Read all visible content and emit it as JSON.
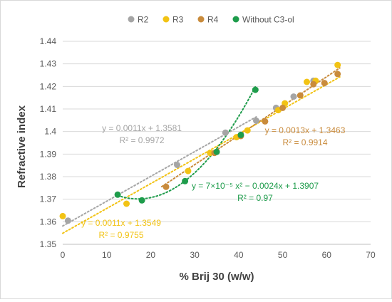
{
  "chart_data": {
    "type": "scatter",
    "title": "",
    "xlabel": "% Brij 30 (w/w)",
    "ylabel": "Refractive index",
    "xlim": [
      0,
      70
    ],
    "ylim": [
      1.35,
      1.44
    ],
    "x_ticks": [
      "0",
      "10",
      "20",
      "30",
      "40",
      "50",
      "60",
      "70"
    ],
    "y_ticks": [
      "1.35",
      "1.36",
      "1.37",
      "1.38",
      "1.39",
      "1.4",
      "1.41",
      "1.42",
      "1.43",
      "1.44"
    ],
    "grid": "horizontal",
    "legend_position": "top",
    "series": [
      {
        "name": "R2",
        "color": "#a5a5a5",
        "points": [
          [
            1.2,
            1.3605
          ],
          [
            26.0,
            1.3852
          ],
          [
            37.0,
            1.3995
          ],
          [
            44.0,
            1.4048
          ],
          [
            48.5,
            1.4105
          ],
          [
            52.5,
            1.4155
          ],
          [
            57.0,
            1.4225
          ]
        ],
        "trendline": {
          "equation": "y = 0.0011x + 1.3581",
          "r2": "R² = 0.9972"
        }
      },
      {
        "name": "R3",
        "color": "#f2c314",
        "points": [
          [
            0,
            1.3625
          ],
          [
            14.5,
            1.368
          ],
          [
            28.5,
            1.3825
          ],
          [
            33.5,
            1.3905
          ],
          [
            39.5,
            1.3975
          ],
          [
            42.0,
            1.4005
          ],
          [
            49.0,
            1.4095
          ],
          [
            50.5,
            1.4125
          ],
          [
            55.5,
            1.422
          ],
          [
            57.5,
            1.4225
          ],
          [
            62.5,
            1.4295
          ]
        ],
        "trendline": {
          "equation": "y = 0.0011x + 1.3549",
          "r2": "R² = 0.9755"
        }
      },
      {
        "name": "R4",
        "color": "#c98b3c",
        "points": [
          [
            23.5,
            1.3755
          ],
          [
            34.5,
            1.3905
          ],
          [
            40.5,
            1.398
          ],
          [
            46.0,
            1.4045
          ],
          [
            50.0,
            1.4105
          ],
          [
            54.0,
            1.416
          ],
          [
            57.0,
            1.421
          ],
          [
            59.5,
            1.4215
          ],
          [
            62.5,
            1.4255
          ]
        ],
        "trendline": {
          "equation": "y = 0.0013x + 1.3463",
          "r2": "R² = 0.9914"
        }
      },
      {
        "name": "Without C3-ol",
        "color": "#1e9c4b",
        "points": [
          [
            12.5,
            1.372
          ],
          [
            18.0,
            1.3695
          ],
          [
            27.8,
            1.378
          ],
          [
            35.0,
            1.391
          ],
          [
            40.5,
            1.3985
          ],
          [
            43.8,
            1.4185
          ]
        ],
        "trendline": {
          "equation": "y = 7×10⁻⁵ x² − 0.0024x + 1.3907",
          "r2": "R² = 0.97"
        }
      }
    ]
  }
}
